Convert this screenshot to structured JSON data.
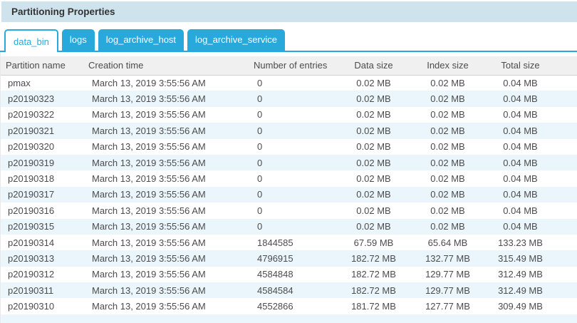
{
  "panel": {
    "title": "Partitioning Properties"
  },
  "tabs": [
    {
      "label": "data_bin",
      "active": true
    },
    {
      "label": "logs",
      "active": false
    },
    {
      "label": "log_archive_host",
      "active": false
    },
    {
      "label": "log_archive_service",
      "active": false
    }
  ],
  "table": {
    "columns": [
      "Partition name",
      "Creation time",
      "Number of entries",
      "Data size",
      "Index size",
      "Total size"
    ],
    "rows": [
      [
        "pmax",
        "March 13, 2019 3:55:56 AM",
        "0",
        "0.02 MB",
        "0.02 MB",
        "0.04 MB"
      ],
      [
        "p20190323",
        "March 13, 2019 3:55:56 AM",
        "0",
        "0.02 MB",
        "0.02 MB",
        "0.04 MB"
      ],
      [
        "p20190322",
        "March 13, 2019 3:55:56 AM",
        "0",
        "0.02 MB",
        "0.02 MB",
        "0.04 MB"
      ],
      [
        "p20190321",
        "March 13, 2019 3:55:56 AM",
        "0",
        "0.02 MB",
        "0.02 MB",
        "0.04 MB"
      ],
      [
        "p20190320",
        "March 13, 2019 3:55:56 AM",
        "0",
        "0.02 MB",
        "0.02 MB",
        "0.04 MB"
      ],
      [
        "p20190319",
        "March 13, 2019 3:55:56 AM",
        "0",
        "0.02 MB",
        "0.02 MB",
        "0.04 MB"
      ],
      [
        "p20190318",
        "March 13, 2019 3:55:56 AM",
        "0",
        "0.02 MB",
        "0.02 MB",
        "0.04 MB"
      ],
      [
        "p20190317",
        "March 13, 2019 3:55:56 AM",
        "0",
        "0.02 MB",
        "0.02 MB",
        "0.04 MB"
      ],
      [
        "p20190316",
        "March 13, 2019 3:55:56 AM",
        "0",
        "0.02 MB",
        "0.02 MB",
        "0.04 MB"
      ],
      [
        "p20190315",
        "March 13, 2019 3:55:56 AM",
        "0",
        "0.02 MB",
        "0.02 MB",
        "0.04 MB"
      ],
      [
        "p20190314",
        "March 13, 2019 3:55:56 AM",
        "1844585",
        "67.59 MB",
        "65.64 MB",
        "133.23 MB"
      ],
      [
        "p20190313",
        "March 13, 2019 3:55:56 AM",
        "4796915",
        "182.72 MB",
        "132.77 MB",
        "315.49 MB"
      ],
      [
        "p20190312",
        "March 13, 2019 3:55:56 AM",
        "4584848",
        "182.72 MB",
        "129.77 MB",
        "312.49 MB"
      ],
      [
        "p20190311",
        "March 13, 2019 3:55:56 AM",
        "4584584",
        "182.72 MB",
        "129.77 MB",
        "312.49 MB"
      ],
      [
        "p20190310",
        "March 13, 2019 3:55:56 AM",
        "4552866",
        "181.72 MB",
        "127.77 MB",
        "309.49 MB"
      ]
    ]
  },
  "colors": {
    "accent": "#29a8dc",
    "titlebar_bg": "#cfe3ed",
    "stripe": "#eaf6fc",
    "header_bg": "#f0f0f0",
    "text": "#4c4c4c"
  }
}
